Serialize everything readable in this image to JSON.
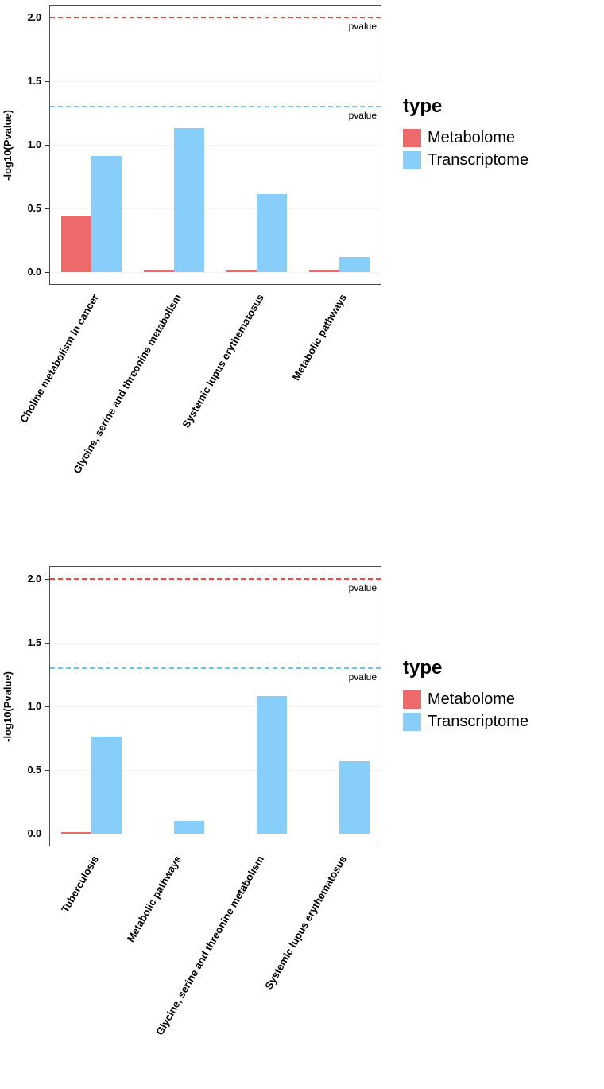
{
  "colors": {
    "metabolome": "#EE6A6A",
    "transcriptome": "#87CEFA",
    "ref_line_red": "#FF4242",
    "ref_line_blue": "#74C4F2",
    "panel_border": "#4D4D4D",
    "axis_text": "#000000",
    "grid_major": "#F3F3F3"
  },
  "chart_data": [
    {
      "type": "bar",
      "title": "",
      "ylabel": "-log10(Pvalue)",
      "xlabel": "",
      "ylim": [
        0,
        2
      ],
      "yticks": [
        "0.0",
        "0.5",
        "1.0",
        "1.5",
        "2.0"
      ],
      "grid": true,
      "legend_position": "right",
      "legend_title": "type",
      "categories": [
        "Choline metabolism in cancer",
        "Glycine, serine and threonine metabolism",
        "Systemic lupus erythematosus",
        "Metabolic pathways"
      ],
      "series": [
        {
          "name": "Metabolome",
          "color": "#EE6A6A",
          "values": [
            0.44,
            0.01,
            0.01,
            0.01
          ]
        },
        {
          "name": "Transcriptome",
          "color": "#87CEFA",
          "values": [
            0.91,
            1.13,
            0.61,
            0.12
          ]
        }
      ],
      "reference_lines": [
        {
          "value": 2.0,
          "label": "pvalue",
          "color": "#FF4242"
        },
        {
          "value": 1.3,
          "label": "pvalue",
          "color": "#74C4F2"
        }
      ]
    },
    {
      "type": "bar",
      "title": "",
      "ylabel": "-log10(Pvalue)",
      "xlabel": "",
      "ylim": [
        0,
        2
      ],
      "yticks": [
        "0.0",
        "0.5",
        "1.0",
        "1.5",
        "2.0"
      ],
      "grid": true,
      "legend_position": "right",
      "legend_title": "type",
      "categories": [
        "Tuberculosis",
        "Metabolic pathways",
        "Glycine, serine and threonine metabolism",
        "Systemic lupus erythematosus"
      ],
      "series": [
        {
          "name": "Metabolome",
          "color": "#EE6A6A",
          "values": [
            0.01,
            0,
            0,
            0
          ]
        },
        {
          "name": "Transcriptome",
          "color": "#87CEFA",
          "values": [
            0.76,
            0.1,
            1.08,
            0.57
          ]
        }
      ],
      "reference_lines": [
        {
          "value": 2.0,
          "label": "pvalue",
          "color": "#FF4242"
        },
        {
          "value": 1.3,
          "label": "pvalue",
          "color": "#74C4F2"
        }
      ]
    }
  ]
}
